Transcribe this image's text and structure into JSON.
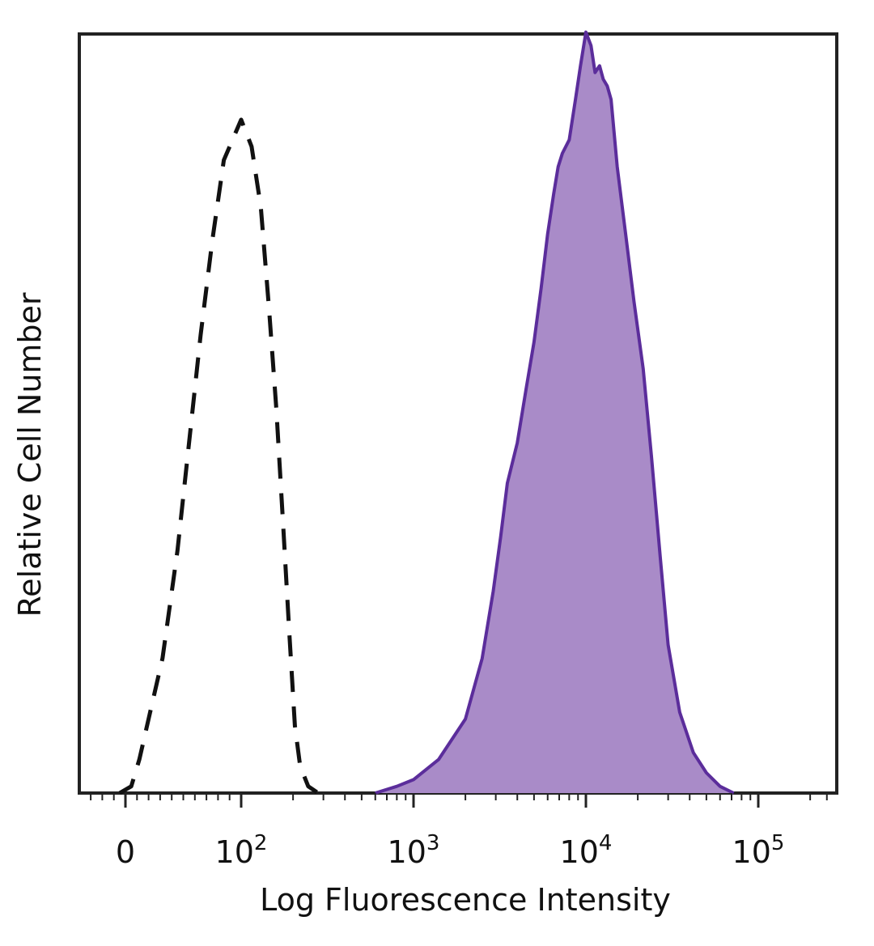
{
  "chart_data": {
    "type": "area",
    "title": "",
    "xlabel": "Log Fluorescence Intensity",
    "ylabel": "Relative Cell Number",
    "x_scale": "biexponential",
    "x_ticks": [
      {
        "value": 0,
        "base": "0",
        "exp": ""
      },
      {
        "value": 100,
        "base": "10",
        "exp": "2"
      },
      {
        "value": 1000,
        "base": "10",
        "exp": "3"
      },
      {
        "value": 10000,
        "base": "10",
        "exp": "4"
      },
      {
        "value": 100000,
        "base": "10",
        "exp": "5"
      }
    ],
    "y_range": [
      0,
      1.12
    ],
    "grid": false,
    "series": [
      {
        "style": "dashed",
        "color": "#111111",
        "fill": "none",
        "points": [
          [
            -5,
            0.0
          ],
          [
            5,
            0.01
          ],
          [
            12,
            0.05
          ],
          [
            20,
            0.11
          ],
          [
            32,
            0.2
          ],
          [
            45,
            0.36
          ],
          [
            55,
            0.52
          ],
          [
            65,
            0.68
          ],
          [
            75,
            0.82
          ],
          [
            85,
            0.94
          ],
          [
            100,
            1.0
          ],
          [
            115,
            0.96
          ],
          [
            130,
            0.87
          ],
          [
            145,
            0.72
          ],
          [
            160,
            0.57
          ],
          [
            175,
            0.4
          ],
          [
            190,
            0.24
          ],
          [
            205,
            0.1
          ],
          [
            220,
            0.04
          ],
          [
            245,
            0.01
          ],
          [
            280,
            0.0
          ]
        ]
      },
      {
        "style": "solid",
        "color": "#5b2d9b",
        "fill": "#a98bc8",
        "points": [
          [
            600,
            0.0
          ],
          [
            800,
            0.01
          ],
          [
            1000,
            0.02
          ],
          [
            1400,
            0.05
          ],
          [
            2000,
            0.11
          ],
          [
            2500,
            0.2
          ],
          [
            2900,
            0.3
          ],
          [
            3200,
            0.38
          ],
          [
            3500,
            0.46
          ],
          [
            4000,
            0.52
          ],
          [
            4500,
            0.6
          ],
          [
            5000,
            0.67
          ],
          [
            5500,
            0.75
          ],
          [
            6000,
            0.83
          ],
          [
            6500,
            0.89
          ],
          [
            6900,
            0.93
          ],
          [
            7300,
            0.95
          ],
          [
            8000,
            0.97
          ],
          [
            8700,
            1.03
          ],
          [
            9300,
            1.08
          ],
          [
            10000,
            1.13
          ],
          [
            10700,
            1.11
          ],
          [
            11300,
            1.07
          ],
          [
            12000,
            1.08
          ],
          [
            12600,
            1.06
          ],
          [
            13300,
            1.05
          ],
          [
            14000,
            1.03
          ],
          [
            15200,
            0.93
          ],
          [
            17000,
            0.83
          ],
          [
            19000,
            0.73
          ],
          [
            21500,
            0.63
          ],
          [
            24000,
            0.5
          ],
          [
            27000,
            0.35
          ],
          [
            30000,
            0.22
          ],
          [
            35000,
            0.12
          ],
          [
            42000,
            0.06
          ],
          [
            50000,
            0.03
          ],
          [
            60000,
            0.01
          ],
          [
            72000,
            0.0
          ]
        ]
      }
    ]
  }
}
